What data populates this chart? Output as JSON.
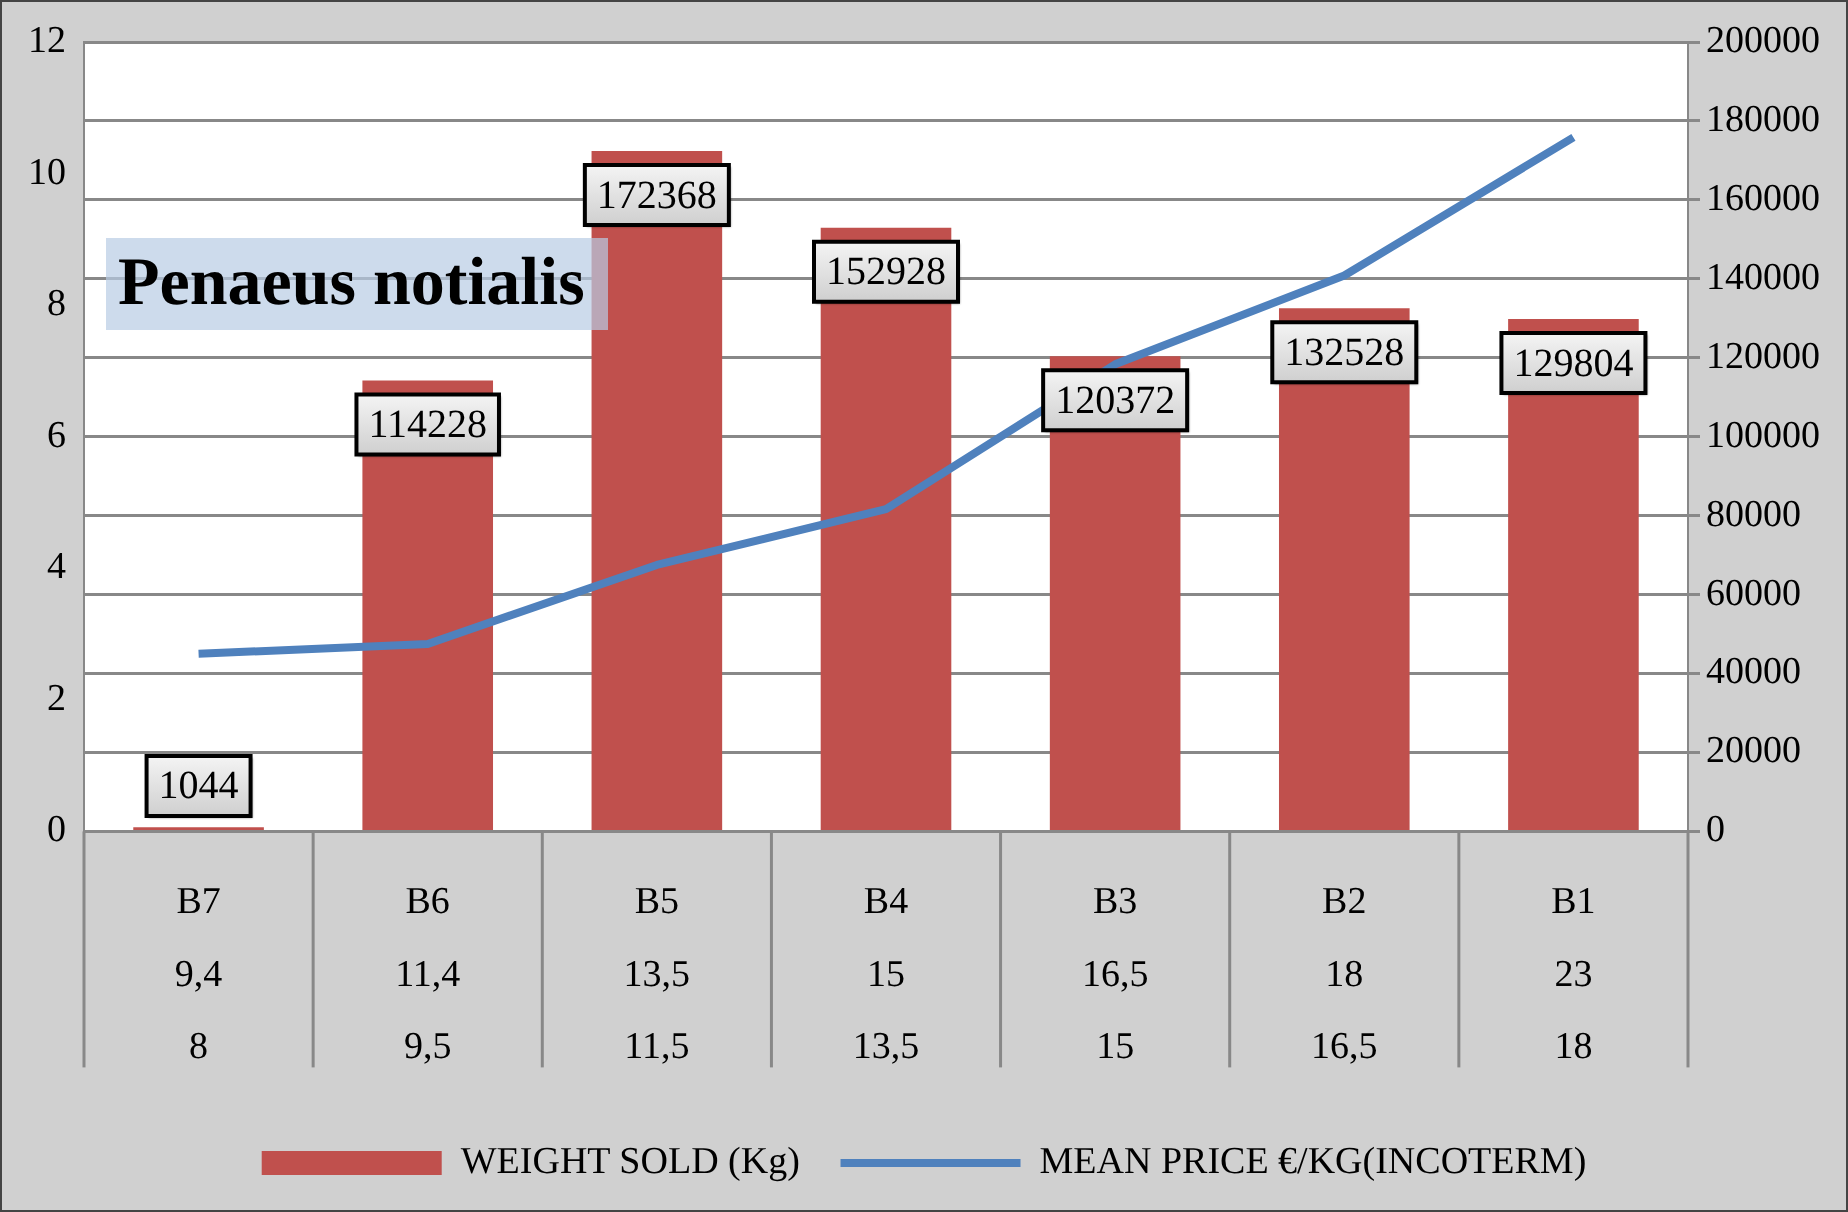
{
  "chart_data": {
    "type": "bar",
    "title": "Penaeus notialis",
    "categories": [
      "B7\n9,4\n8",
      "B6\n11,4\n9,5",
      "B5\n13,5\n11,5",
      "B4\n15\n13,5",
      "B3\n16,5\n15",
      "B2\n18\n16,5",
      "B1\n23\n18"
    ],
    "series": [
      {
        "name": "WEIGHT SOLD (Kg)",
        "axis": "y2",
        "color": "#c0504d",
        "values": [
          1044,
          114228,
          172368,
          152928,
          120372,
          132528,
          129804
        ],
        "data_labels": true
      },
      {
        "name": "MEAN PRICE €/KG(INCOTERM)",
        "type": "line",
        "color": "#4f81bd",
        "values": [
          2.7,
          2.85,
          4.05,
          4.9,
          7.1,
          8.45,
          10.55
        ],
        "marker": "none"
      }
    ],
    "ylim": [
      0,
      12
    ],
    "yticks": [
      0,
      2,
      4,
      6,
      8,
      10,
      12
    ],
    "y2lim": [
      0,
      200000
    ],
    "y2ticks": [
      0,
      20000,
      40000,
      60000,
      80000,
      100000,
      120000,
      140000,
      160000,
      180000,
      200000
    ],
    "grid": "y2",
    "legend": "bottom"
  }
}
